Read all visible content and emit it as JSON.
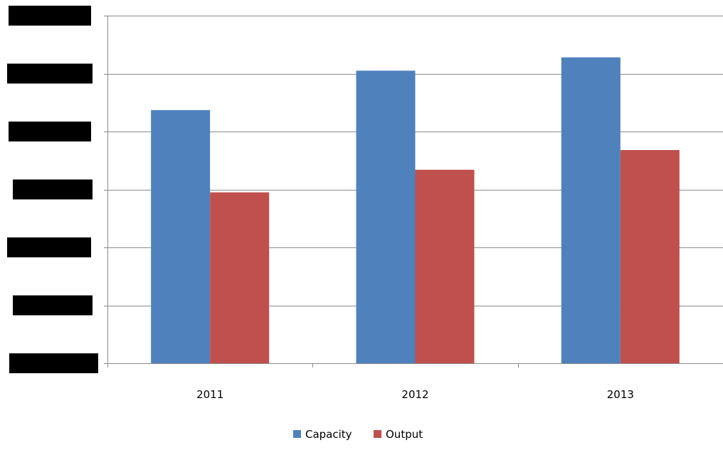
{
  "chart_data": {
    "type": "bar",
    "title": "",
    "xlabel": "",
    "ylabel": "",
    "categories": [
      "2011",
      "2012",
      "2013"
    ],
    "series": [
      {
        "name": "Capacity",
        "color": "#4F81BD",
        "values": [
          4.37,
          5.05,
          5.28
        ]
      },
      {
        "name": "Output",
        "color": "#C0504D",
        "values": [
          2.95,
          3.34,
          3.68
        ]
      }
    ],
    "ylim": [
      0,
      6
    ],
    "y_ticks": [
      0,
      1,
      2,
      3,
      4,
      5,
      6
    ],
    "y_tick_labels_redacted": true,
    "redaction_color": "#000000",
    "gridlines": true,
    "gridline_color": "#8C8C8C",
    "axis_color": "#8C8C8C",
    "legend_position": "bottom"
  }
}
